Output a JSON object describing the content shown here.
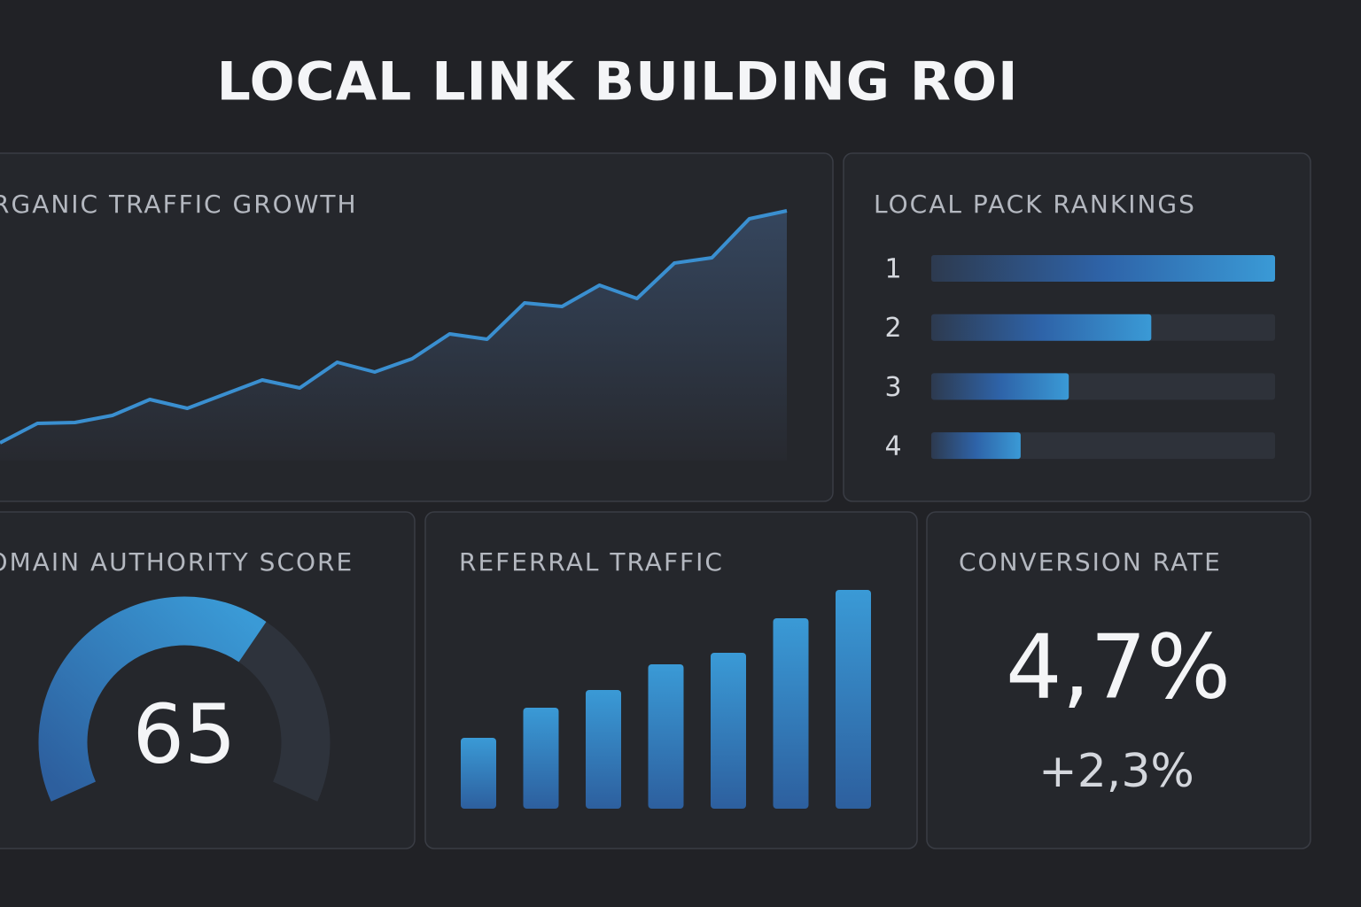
{
  "header": {
    "title": "LOCAL LINK BUILDING ROI"
  },
  "chart_data": [
    {
      "type": "area",
      "title": "ORGANIC TRAFFIC GROWTH",
      "values": [
        20,
        42,
        43,
        51,
        69,
        59,
        75,
        91,
        82,
        111,
        100,
        115,
        143,
        137,
        178,
        174,
        198,
        183,
        223,
        229,
        273,
        282
      ],
      "ylim": [
        0,
        300
      ],
      "color": "#3a8fd0"
    },
    {
      "type": "hbar",
      "title": "LOCAL PACK RANKINGS",
      "categories": [
        "1",
        "2",
        "3",
        "4"
      ],
      "values": [
        100,
        64,
        40,
        26
      ],
      "xlim": [
        0,
        100
      ],
      "color": "#3a9ad6"
    },
    {
      "type": "gauge",
      "title": "DOMAIN AUTHORITY SCORE",
      "value": 65,
      "ylim": [
        0,
        100
      ],
      "color": "#2f6fb0"
    },
    {
      "type": "bar",
      "title": "REFERRAL TRAFFIC",
      "categories": [
        null,
        null,
        null,
        null,
        null,
        null,
        null
      ],
      "values": [
        80,
        114,
        134,
        163,
        176,
        215,
        247
      ],
      "ylim": [
        0,
        260
      ],
      "color": "#3a9ad6"
    },
    {
      "type": "kpi",
      "title": "CONVERSION RATE",
      "value": 4.7,
      "value_label": "4,7%",
      "change": 2.3,
      "change_label": "+2,3%"
    }
  ]
}
